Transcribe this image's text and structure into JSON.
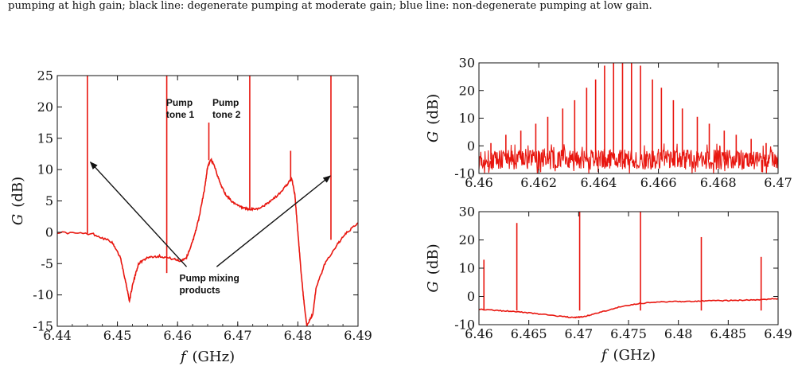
{
  "caption": "pumping at high gain; black line: degenerate pumping at moderate gain; blue line: non-degenerate pumping at low gain.",
  "colors": {
    "trace": "#e8160f",
    "axis": "#111111",
    "arrow": "#111111"
  },
  "chart_data": [
    {
      "id": "left",
      "type": "line",
      "xlabel_var": "f",
      "xlabel_unit": "(GHz)",
      "ylabel_var": "G",
      "ylabel_unit": "(dB)",
      "xlim": [
        6.44,
        6.49
      ],
      "ylim": [
        -15,
        25
      ],
      "xticks": [
        "6.44",
        "6.45",
        "6.46",
        "6.47",
        "6.48",
        "6.49"
      ],
      "xtick_values": [
        6.44,
        6.45,
        6.46,
        6.47,
        6.48,
        6.49
      ],
      "yticks": [
        "-15",
        "-10",
        "-5",
        "0",
        "5",
        "10",
        "15",
        "20",
        "25"
      ],
      "ytick_values": [
        -15,
        -10,
        -5,
        0,
        5,
        10,
        15,
        20,
        25
      ],
      "baseline": [
        [
          6.44,
          0
        ],
        [
          6.446,
          -0.3
        ],
        [
          6.449,
          -1.5
        ],
        [
          6.4505,
          -4
        ],
        [
          6.4515,
          -8.5
        ],
        [
          6.452,
          -11
        ],
        [
          6.4525,
          -8.5
        ],
        [
          6.4535,
          -5
        ],
        [
          6.455,
          -4
        ],
        [
          6.457,
          -3.8
        ],
        [
          6.459,
          -4.2
        ],
        [
          6.4605,
          -4.6
        ],
        [
          6.4615,
          -4
        ],
        [
          6.4625,
          -1.5
        ],
        [
          6.4635,
          2
        ],
        [
          6.4645,
          7
        ],
        [
          6.465,
          10.5
        ],
        [
          6.4655,
          11.5
        ],
        [
          6.466,
          11
        ],
        [
          6.467,
          8
        ],
        [
          6.468,
          6
        ],
        [
          6.4695,
          4.5
        ],
        [
          6.471,
          3.8
        ],
        [
          6.472,
          3.6
        ],
        [
          6.4735,
          3.8
        ],
        [
          6.475,
          4.6
        ],
        [
          6.477,
          6.2
        ],
        [
          6.4785,
          8
        ],
        [
          6.479,
          8.5
        ],
        [
          6.4795,
          6
        ],
        [
          6.48,
          0
        ],
        [
          6.4805,
          -6
        ],
        [
          6.481,
          -11
        ],
        [
          6.4815,
          -15
        ],
        [
          6.4825,
          -13
        ],
        [
          6.483,
          -9
        ],
        [
          6.4845,
          -5
        ],
        [
          6.4865,
          -2
        ],
        [
          6.488,
          -0.2
        ],
        [
          6.49,
          1.5
        ]
      ],
      "spikes": [
        {
          "x": 6.445,
          "from": -0.3,
          "to": 25
        },
        {
          "x": 6.4582,
          "from": -6.5,
          "to": 25
        },
        {
          "x": 6.4652,
          "from": 11.5,
          "to": 17.5
        },
        {
          "x": 6.472,
          "from": 3.6,
          "to": 25
        },
        {
          "x": 6.4788,
          "from": 8.3,
          "to": 13
        },
        {
          "x": 6.4855,
          "from": -1.2,
          "to": 25
        }
      ],
      "annotations": [
        {
          "lines": [
            "Pump",
            "tone 1"
          ],
          "x": 6.4581,
          "y": 20.2
        },
        {
          "lines": [
            "Pump",
            "tone 2"
          ],
          "x": 6.4658,
          "y": 20.2
        },
        {
          "lines": [
            "Pump mixing",
            "products"
          ],
          "x": 6.4603,
          "y": -7.8
        }
      ],
      "arrows": [
        {
          "from": [
            6.4615,
            -5.5
          ],
          "to": [
            6.4455,
            11.2
          ]
        },
        {
          "from": [
            6.4665,
            -5.5
          ],
          "to": [
            6.4854,
            9
          ]
        }
      ]
    },
    {
      "id": "top-right",
      "type": "line",
      "ylabel_var": "G",
      "ylabel_unit": "(dB)",
      "xlim": [
        6.46,
        6.47
      ],
      "ylim": [
        -10,
        30
      ],
      "xticks": [
        "6.46",
        "6.462",
        "6.464",
        "6.466",
        "6.468",
        "6.47"
      ],
      "xtick_values": [
        6.46,
        6.462,
        6.464,
        6.466,
        6.468,
        6.47
      ],
      "yticks": [
        "-10",
        "0",
        "10",
        "20",
        "30"
      ],
      "ytick_values": [
        -10,
        0,
        10,
        20,
        30
      ],
      "noise_floor": {
        "mean": -5,
        "amplitude": 4.5
      },
      "spikes": [
        {
          "x": 6.4604,
          "to": 1
        },
        {
          "x": 6.4609,
          "to": 4
        },
        {
          "x": 6.4614,
          "to": 5.5
        },
        {
          "x": 6.4619,
          "to": 8
        },
        {
          "x": 6.4623,
          "to": 10.5
        },
        {
          "x": 6.4628,
          "to": 13.5
        },
        {
          "x": 6.4632,
          "to": 16.5
        },
        {
          "x": 6.4636,
          "to": 21
        },
        {
          "x": 6.4639,
          "to": 24
        },
        {
          "x": 6.4642,
          "to": 29
        },
        {
          "x": 6.4645,
          "to": 30
        },
        {
          "x": 6.4648,
          "to": 30
        },
        {
          "x": 6.4651,
          "to": 30
        },
        {
          "x": 6.4654,
          "to": 29
        },
        {
          "x": 6.4658,
          "to": 24
        },
        {
          "x": 6.4661,
          "to": 21
        },
        {
          "x": 6.4665,
          "to": 16.5
        },
        {
          "x": 6.4668,
          "to": 13.5
        },
        {
          "x": 6.4673,
          "to": 10.5
        },
        {
          "x": 6.4677,
          "to": 8
        },
        {
          "x": 6.4682,
          "to": 5.5
        },
        {
          "x": 6.4686,
          "to": 4
        },
        {
          "x": 6.4691,
          "to": 2.5
        },
        {
          "x": 6.4696,
          "to": 1
        }
      ]
    },
    {
      "id": "bottom-right",
      "type": "line",
      "xlabel_var": "f",
      "xlabel_unit": "(GHz)",
      "ylabel_var": "G",
      "ylabel_unit": "(dB)",
      "xlim": [
        6.46,
        6.49
      ],
      "ylim": [
        -10,
        30
      ],
      "xticks": [
        "6.46",
        "6.465",
        "6.47",
        "6.475",
        "6.48",
        "6.485",
        "6.49"
      ],
      "xtick_values": [
        6.46,
        6.465,
        6.47,
        6.475,
        6.48,
        6.485,
        6.49
      ],
      "yticks": [
        "-10",
        "0",
        "10",
        "20",
        "30"
      ],
      "ytick_values": [
        -10,
        0,
        10,
        20,
        30
      ],
      "baseline": [
        [
          6.46,
          -4.5
        ],
        [
          6.462,
          -5
        ],
        [
          6.464,
          -5.5
        ],
        [
          6.466,
          -6.2
        ],
        [
          6.468,
          -7
        ],
        [
          6.4695,
          -7.5
        ],
        [
          6.4705,
          -7.2
        ],
        [
          6.472,
          -5.8
        ],
        [
          6.474,
          -3.8
        ],
        [
          6.476,
          -2.5
        ],
        [
          6.478,
          -2
        ],
        [
          6.48,
          -1.8
        ],
        [
          6.482,
          -1.7
        ],
        [
          6.484,
          -1.5
        ],
        [
          6.486,
          -1.4
        ],
        [
          6.488,
          -1.2
        ],
        [
          6.49,
          -0.8
        ]
      ],
      "spikes": [
        {
          "x": 6.4605,
          "to": 13
        },
        {
          "x": 6.4638,
          "to": 26
        },
        {
          "x": 6.4701,
          "to": 30
        },
        {
          "x": 6.4762,
          "to": 30
        },
        {
          "x": 6.4823,
          "to": 21
        },
        {
          "x": 6.4883,
          "to": 14
        }
      ]
    }
  ]
}
